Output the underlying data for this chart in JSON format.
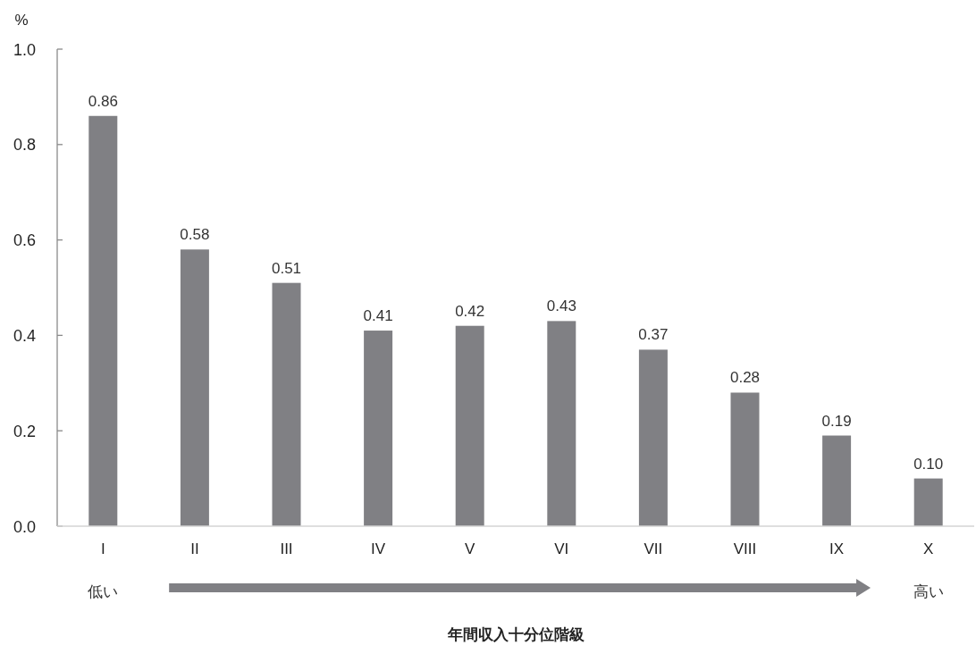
{
  "chart_data": {
    "type": "bar",
    "ylabel": "%",
    "xlabel": "年間収入十分位階級",
    "categories": [
      "I",
      "II",
      "III",
      "IV",
      "V",
      "VI",
      "VII",
      "VIII",
      "IX",
      "X"
    ],
    "values": [
      0.86,
      0.58,
      0.51,
      0.41,
      0.42,
      0.43,
      0.37,
      0.28,
      0.19,
      0.1
    ],
    "value_labels": [
      "0.86",
      "0.58",
      "0.51",
      "0.41",
      "0.42",
      "0.43",
      "0.37",
      "0.28",
      "0.19",
      "0.10"
    ],
    "color": "#808084",
    "ylim": [
      0,
      1
    ],
    "yticks": [
      {
        "value": 0,
        "label": "0.0"
      },
      {
        "value": 0.2,
        "label": "0.2"
      },
      {
        "value": 0.4,
        "label": "0.4"
      },
      {
        "value": 0.6,
        "label": "0.6"
      },
      {
        "value": 0.8,
        "label": "0.8"
      },
      {
        "value": 1,
        "label": "1.0"
      }
    ],
    "annotations": [
      "低い",
      "高い"
    ]
  }
}
